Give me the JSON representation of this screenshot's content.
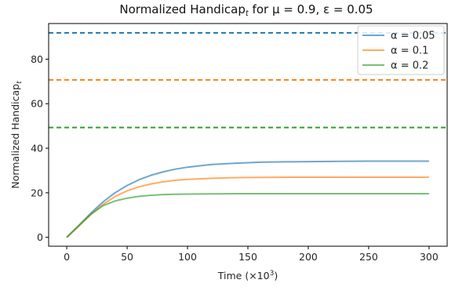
{
  "chart_data": {
    "type": "line",
    "title": "Normalized Handicap",
    "title_sub": "t",
    "title_rest": " for μ = 0.9, ε = 0.05",
    "xlabel": "Time (×10",
    "xlabel_sup": "3",
    "xlabel_end": ")",
    "ylabel": "Normalized Handicap",
    "ylabel_sub": "t",
    "xlim": [
      -15,
      315
    ],
    "ylim": [
      -4,
      96
    ],
    "xticks": [
      0,
      50,
      100,
      150,
      200,
      250,
      300
    ],
    "yticks": [
      0,
      20,
      40,
      60,
      80
    ],
    "grid": false,
    "legend_position": "top-right",
    "series": [
      {
        "name": "α = 0.05",
        "color": "#1f77b4",
        "x": [
          0,
          10,
          20,
          30,
          40,
          50,
          60,
          70,
          80,
          90,
          100,
          120,
          140,
          160,
          180,
          200,
          225,
          250,
          275,
          300
        ],
        "values": [
          0,
          5.3,
          10.9,
          15.9,
          20.0,
          23.3,
          25.9,
          27.9,
          29.4,
          30.6,
          31.5,
          32.7,
          33.3,
          33.7,
          33.9,
          34.0,
          34.1,
          34.2,
          34.2,
          34.2
        ],
        "reference": 91.8
      },
      {
        "name": "α = 0.1",
        "color": "#ff7f0e",
        "x": [
          0,
          10,
          20,
          30,
          40,
          50,
          60,
          70,
          80,
          90,
          100,
          120,
          140,
          160,
          180,
          200,
          225,
          250,
          275,
          300
        ],
        "values": [
          0,
          5.0,
          10.2,
          14.8,
          18.3,
          20.9,
          22.7,
          24.0,
          24.9,
          25.6,
          26.0,
          26.5,
          26.8,
          26.9,
          27.0,
          27.0,
          27.0,
          27.0,
          27.0,
          27.0
        ],
        "reference": 70.7
      },
      {
        "name": "α = 0.2",
        "color": "#2ca02c",
        "x": [
          0,
          10,
          20,
          30,
          40,
          50,
          60,
          70,
          80,
          90,
          100,
          120,
          140,
          160,
          180,
          200,
          225,
          250,
          275,
          300
        ],
        "values": [
          0,
          5.3,
          10.4,
          14.2,
          16.3,
          17.6,
          18.4,
          18.9,
          19.2,
          19.3,
          19.4,
          19.5,
          19.6,
          19.6,
          19.6,
          19.6,
          19.6,
          19.6,
          19.6,
          19.6
        ],
        "reference": 49.3
      }
    ]
  }
}
